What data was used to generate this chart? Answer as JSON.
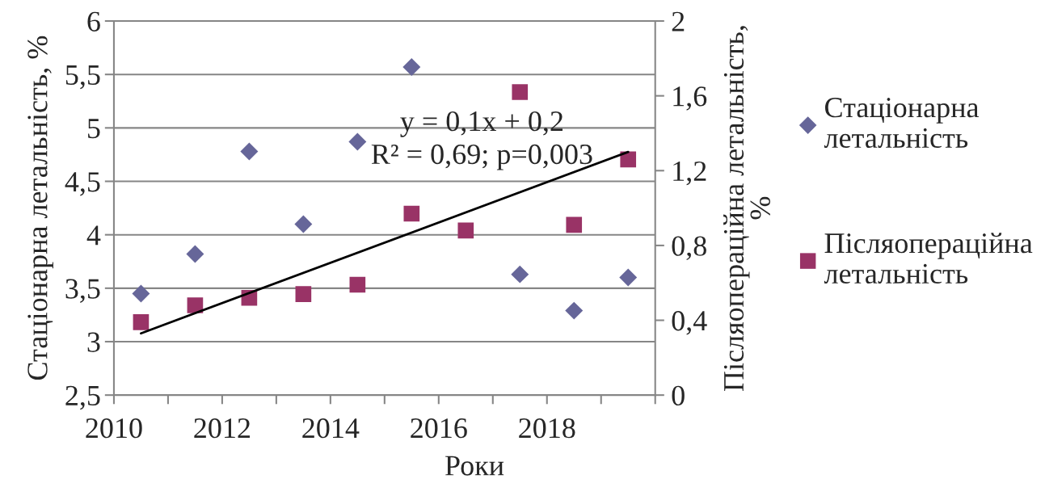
{
  "chart_data": {
    "type": "scatter",
    "xlabel": "Роки",
    "ylabel": "Стаціонарна летальність, %",
    "y2label": "Післяопераційна летальність, %",
    "x": [
      2010.5,
      2011.5,
      2012.5,
      2013.5,
      2014.5,
      2015.5,
      2016.5,
      2017.5,
      2018.5,
      2019.5
    ],
    "series": [
      {
        "name": "Стаціонарна летальність",
        "color": "#666699",
        "marker": "diamond",
        "values": [
          3.45,
          3.82,
          4.78,
          4.1,
          4.87,
          5.57,
          null,
          3.63,
          3.29,
          3.6
        ]
      },
      {
        "name": "Післяопераційна летальність",
        "color": "#993366",
        "marker": "square",
        "axis": "y2",
        "values": [
          0.39,
          0.48,
          0.52,
          0.54,
          0.59,
          0.97,
          0.88,
          1.62,
          0.91,
          1.26
        ]
      },
      {
        "type": "line",
        "color": "#000000",
        "axis": "y2",
        "x": [
          2010.5,
          2019.5
        ],
        "values": [
          0.33,
          1.3
        ]
      }
    ],
    "xlim": [
      2010,
      2020
    ],
    "xticks": [
      2010,
      {
        "value": 2011,
        "label": null
      },
      2012,
      {
        "value": 2013,
        "label": null
      },
      2014,
      {
        "value": 2015,
        "label": null
      },
      2016,
      {
        "value": 2017,
        "label": null
      },
      2018,
      {
        "value": 2019,
        "label": null
      },
      {
        "value": 2020,
        "label": null
      }
    ],
    "ylim": [
      2.5,
      6
    ],
    "yticks": [
      {
        "value": 2.5,
        "label": "2,5"
      },
      3,
      {
        "value": 3.5,
        "label": "3,5"
      },
      4,
      {
        "value": 4.5,
        "label": "4,5"
      },
      5,
      {
        "value": 5.5,
        "label": "5,5"
      },
      6
    ],
    "y2lim": [
      0,
      2
    ],
    "y2ticks": [
      0,
      {
        "value": 0.4,
        "label": "0,4"
      },
      {
        "value": 0.8,
        "label": "0,8"
      },
      {
        "value": 1.2,
        "label": "1,2"
      },
      {
        "value": 1.6,
        "label": "1,6"
      },
      2
    ],
    "grid": "y",
    "legend": "right",
    "annotations": [
      "y = 0,1x + 0,2",
      "R² = 0,69; p=0,003"
    ]
  }
}
